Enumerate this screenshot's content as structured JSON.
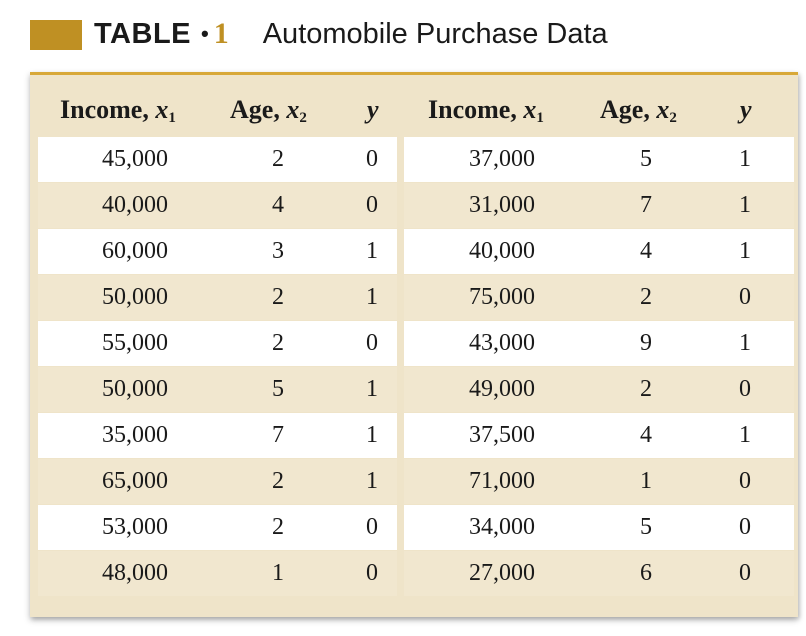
{
  "caption": {
    "label": "TABLE",
    "dot": "•",
    "number": "1",
    "title": "Automobile Purchase Data"
  },
  "colors": {
    "accent_gold": "#bf9023",
    "header_band": "#efe4c9",
    "shaded_row": "#f1e7cf",
    "plain_row": "#ffffff",
    "top_rule": "#d8a838"
  },
  "headers": [
    {
      "name": "Income,",
      "var": "x",
      "sub": "1"
    },
    {
      "name": "Age,",
      "var": "x",
      "sub": "2"
    },
    {
      "name": "",
      "var": "y",
      "sub": ""
    },
    {
      "name": "Income,",
      "var": "x",
      "sub": "1"
    },
    {
      "name": "Age,",
      "var": "x",
      "sub": "2"
    },
    {
      "name": "",
      "var": "y",
      "sub": ""
    }
  ],
  "rows": [
    [
      "45,000",
      "2",
      "0",
      "37,000",
      "5",
      "1"
    ],
    [
      "40,000",
      "4",
      "0",
      "31,000",
      "7",
      "1"
    ],
    [
      "60,000",
      "3",
      "1",
      "40,000",
      "4",
      "1"
    ],
    [
      "50,000",
      "2",
      "1",
      "75,000",
      "2",
      "0"
    ],
    [
      "55,000",
      "2",
      "0",
      "43,000",
      "9",
      "1"
    ],
    [
      "50,000",
      "5",
      "1",
      "49,000",
      "2",
      "0"
    ],
    [
      "35,000",
      "7",
      "1",
      "37,500",
      "4",
      "1"
    ],
    [
      "65,000",
      "2",
      "1",
      "71,000",
      "1",
      "0"
    ],
    [
      "53,000",
      "2",
      "0",
      "34,000",
      "5",
      "0"
    ],
    [
      "48,000",
      "1",
      "0",
      "27,000",
      "6",
      "0"
    ]
  ]
}
